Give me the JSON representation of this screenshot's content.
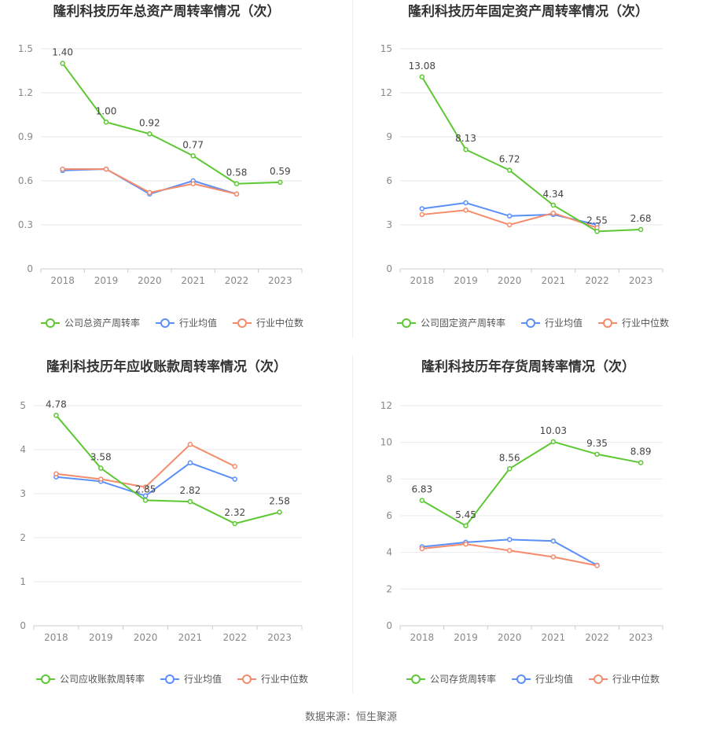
{
  "footer": {
    "source": "数据来源：恒生聚源"
  },
  "colors": {
    "company": "#5cc832",
    "industry_avg": "#5b8ff9",
    "industry_median": "#f58b6b",
    "grid": "#e8e8f0",
    "axis": "#cccccc",
    "title": "#333333",
    "tick": "#888888"
  },
  "chart_data": [
    {
      "type": "line",
      "title": "隆利科技历年总资产周转率情况（次）",
      "categories": [
        "2018",
        "2019",
        "2020",
        "2021",
        "2022",
        "2023"
      ],
      "ylim": [
        0,
        1.5
      ],
      "yticks": [
        "0",
        "0.3",
        "0.6",
        "0.9",
        "1.2",
        "1.5"
      ],
      "series": [
        {
          "name": "公司总资产周转率",
          "values": [
            1.4,
            1.0,
            0.92,
            0.77,
            0.58,
            0.59
          ],
          "labels": [
            "1.40",
            "1.00",
            "0.92",
            "0.77",
            "0.58",
            "0.59"
          ]
        },
        {
          "name": "行业均值",
          "values": [
            0.67,
            0.68,
            0.51,
            0.6,
            0.51,
            null
          ]
        },
        {
          "name": "行业中位数",
          "values": [
            0.68,
            0.68,
            0.52,
            0.58,
            0.51,
            null
          ]
        }
      ],
      "grid": true,
      "legend": "bottom"
    },
    {
      "type": "line",
      "title": "隆利科技历年固定资产周转率情况（次）",
      "categories": [
        "2018",
        "2019",
        "2020",
        "2021",
        "2022",
        "2023"
      ],
      "ylim": [
        0,
        15
      ],
      "yticks": [
        "0",
        "3",
        "6",
        "9",
        "12",
        "15"
      ],
      "series": [
        {
          "name": "公司固定资产周转率",
          "values": [
            13.08,
            8.13,
            6.72,
            4.34,
            2.55,
            2.68
          ],
          "labels": [
            "13.08",
            "8.13",
            "6.72",
            "4.34",
            "2.55",
            "2.68"
          ]
        },
        {
          "name": "行业均值",
          "values": [
            4.1,
            4.5,
            3.6,
            3.7,
            3.0,
            null
          ]
        },
        {
          "name": "行业中位数",
          "values": [
            3.7,
            4.0,
            3.0,
            3.8,
            2.8,
            null
          ]
        }
      ],
      "grid": true,
      "legend": "bottom"
    },
    {
      "type": "line",
      "title": "隆利科技历年应收账款周转率情况（次）",
      "categories": [
        "2018",
        "2019",
        "2020",
        "2021",
        "2022",
        "2023"
      ],
      "ylim": [
        0,
        5
      ],
      "yticks": [
        "0",
        "1",
        "2",
        "3",
        "4",
        "5"
      ],
      "series": [
        {
          "name": "公司应收账款周转率",
          "values": [
            4.78,
            3.58,
            2.85,
            2.82,
            2.32,
            2.58
          ],
          "labels": [
            "4.78",
            "3.58",
            "2.85",
            "2.82",
            "2.32",
            "2.58"
          ]
        },
        {
          "name": "行业均值",
          "values": [
            3.38,
            3.28,
            2.95,
            3.7,
            3.33,
            null
          ]
        },
        {
          "name": "行业中位数",
          "values": [
            3.45,
            3.33,
            3.15,
            4.12,
            3.62,
            null
          ]
        }
      ],
      "grid": true,
      "legend": "bottom"
    },
    {
      "type": "line",
      "title": "隆利科技历年存货周转率情况（次）",
      "categories": [
        "2018",
        "2019",
        "2020",
        "2021",
        "2022",
        "2023"
      ],
      "ylim": [
        0,
        12
      ],
      "yticks": [
        "0",
        "2",
        "4",
        "6",
        "8",
        "10",
        "12"
      ],
      "series": [
        {
          "name": "公司存货周转率",
          "values": [
            6.83,
            5.45,
            8.56,
            10.03,
            9.35,
            8.89
          ],
          "labels": [
            "6.83",
            "5.45",
            "8.56",
            "10.03",
            "9.35",
            "8.89"
          ]
        },
        {
          "name": "行业均值",
          "values": [
            4.3,
            4.55,
            4.7,
            4.62,
            3.3,
            null
          ]
        },
        {
          "name": "行业中位数",
          "values": [
            4.2,
            4.45,
            4.1,
            3.75,
            3.28,
            null
          ]
        }
      ],
      "grid": true,
      "legend": "bottom"
    }
  ]
}
